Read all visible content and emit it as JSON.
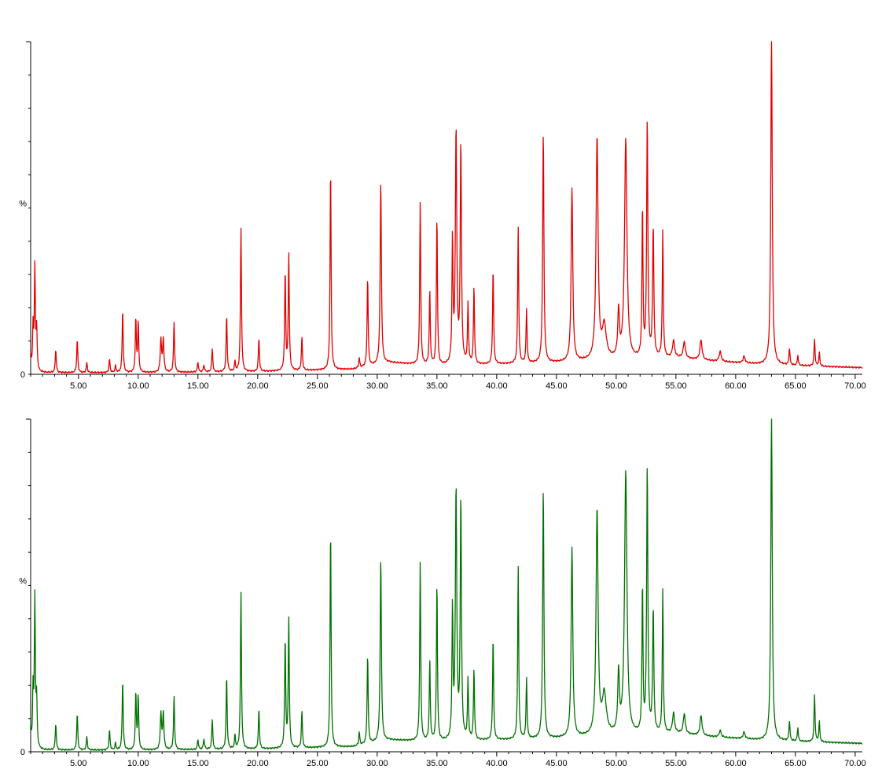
{
  "chart_data": [
    {
      "type": "line",
      "ylabel": "%",
      "xlim": [
        1,
        70.6
      ],
      "ylim": [
        0,
        100
      ],
      "x_ticks": [
        5,
        10,
        15,
        20,
        25,
        30,
        35,
        40,
        45,
        50,
        55,
        60,
        65,
        70
      ],
      "x_tick_labels": [
        "5.00",
        "10.00",
        "15.00",
        "20.00",
        "25.00",
        "30.00",
        "35.00",
        "40.00",
        "45.00",
        "50.00",
        "55.00",
        "60.00",
        "65.00",
        "70.00"
      ],
      "y_tick_labels": [
        "0"
      ],
      "color": "#e00000",
      "baseline": [
        [
          1,
          0.5
        ],
        [
          10,
          0.5
        ],
        [
          20,
          0.8
        ],
        [
          28,
          1.5
        ],
        [
          31,
          3.5
        ],
        [
          35,
          2.5
        ],
        [
          40,
          3
        ],
        [
          45,
          3.5
        ],
        [
          48,
          4
        ],
        [
          52,
          4.5
        ],
        [
          55,
          5
        ],
        [
          58,
          4
        ],
        [
          62,
          3
        ],
        [
          66,
          2.5
        ],
        [
          70.6,
          2
        ]
      ],
      "peaks": [
        [
          1.0,
          5,
          0.05
        ],
        [
          1.2,
          13,
          0.05
        ],
        [
          1.35,
          31,
          0.05
        ],
        [
          1.5,
          12,
          0.05
        ],
        [
          3.1,
          7,
          0.05
        ],
        [
          4.9,
          10,
          0.05
        ],
        [
          5.7,
          3,
          0.05
        ],
        [
          7.6,
          4,
          0.05
        ],
        [
          8.1,
          2,
          0.05
        ],
        [
          8.7,
          19,
          0.05
        ],
        [
          9.8,
          16,
          0.05
        ],
        [
          10.0,
          15,
          0.05
        ],
        [
          11.9,
          10,
          0.06
        ],
        [
          12.1,
          10,
          0.06
        ],
        [
          13.0,
          15,
          0.05
        ],
        [
          15.0,
          3,
          0.05
        ],
        [
          15.5,
          2,
          0.06
        ],
        [
          16.2,
          7,
          0.05
        ],
        [
          17.4,
          17,
          0.05
        ],
        [
          18.1,
          3,
          0.05
        ],
        [
          18.6,
          43,
          0.05
        ],
        [
          20.1,
          10,
          0.05
        ],
        [
          22.3,
          30,
          0.05
        ],
        [
          22.6,
          35,
          0.05
        ],
        [
          23.7,
          10,
          0.05
        ],
        [
          26.1,
          61,
          0.05
        ],
        [
          28.5,
          3,
          0.05
        ],
        [
          29.2,
          27,
          0.05
        ],
        [
          30.3,
          55,
          0.06
        ],
        [
          33.6,
          49,
          0.05
        ],
        [
          34.4,
          22,
          0.05
        ],
        [
          35.0,
          45,
          0.05
        ],
        [
          36.3,
          37,
          0.05
        ],
        [
          36.6,
          70,
          0.07
        ],
        [
          37.0,
          66,
          0.06
        ],
        [
          37.6,
          18,
          0.05
        ],
        [
          38.1,
          23,
          0.05
        ],
        [
          39.7,
          29,
          0.05
        ],
        [
          41.8,
          41,
          0.05
        ],
        [
          42.5,
          16,
          0.05
        ],
        [
          43.9,
          69,
          0.06
        ],
        [
          46.3,
          52,
          0.08
        ],
        [
          48.4,
          67,
          0.1
        ],
        [
          49.0,
          10,
          0.2
        ],
        [
          50.2,
          14,
          0.08
        ],
        [
          50.8,
          66,
          0.12
        ],
        [
          52.2,
          45,
          0.05
        ],
        [
          52.6,
          71,
          0.06
        ],
        [
          53.1,
          39,
          0.06
        ],
        [
          53.9,
          38,
          0.05
        ],
        [
          54.8,
          5,
          0.1
        ],
        [
          55.7,
          5,
          0.1
        ],
        [
          57.1,
          6,
          0.1
        ],
        [
          58.7,
          3,
          0.1
        ],
        [
          60.7,
          2,
          0.1
        ],
        [
          63.0,
          100,
          0.07
        ],
        [
          64.5,
          5,
          0.05
        ],
        [
          65.2,
          3,
          0.05
        ],
        [
          66.6,
          8,
          0.05
        ],
        [
          67.0,
          4,
          0.05
        ]
      ]
    },
    {
      "type": "line",
      "ylabel": "%",
      "xlim": [
        1,
        70.6
      ],
      "ylim": [
        0,
        100
      ],
      "x_ticks": [
        5,
        10,
        15,
        20,
        25,
        30,
        35,
        40,
        45,
        50,
        55,
        60,
        65,
        70
      ],
      "x_tick_labels": [
        "5.00",
        "10.00",
        "15.00",
        "20.00",
        "25.00",
        "30.00",
        "35.00",
        "40.00",
        "45.00",
        "50.00",
        "55.00",
        "60.00",
        "65.00",
        "70.00"
      ],
      "y_tick_labels": [
        "0"
      ],
      "color": "#007000",
      "baseline": [
        [
          1,
          0.5
        ],
        [
          10,
          0.5
        ],
        [
          20,
          0.8
        ],
        [
          28,
          1.5
        ],
        [
          31,
          3.5
        ],
        [
          35,
          3
        ],
        [
          40,
          3.5
        ],
        [
          45,
          4
        ],
        [
          48,
          4.5
        ],
        [
          52,
          5
        ],
        [
          55,
          5.5
        ],
        [
          58,
          4.5
        ],
        [
          62,
          3.5
        ],
        [
          66,
          3
        ],
        [
          70.6,
          2.5
        ]
      ],
      "peaks": [
        [
          1.0,
          6,
          0.05
        ],
        [
          1.2,
          17,
          0.05
        ],
        [
          1.35,
          45,
          0.05
        ],
        [
          1.5,
          14,
          0.05
        ],
        [
          3.1,
          8,
          0.05
        ],
        [
          4.9,
          11,
          0.05
        ],
        [
          5.7,
          4,
          0.05
        ],
        [
          7.6,
          6,
          0.05
        ],
        [
          8.1,
          2,
          0.05
        ],
        [
          8.7,
          21,
          0.05
        ],
        [
          9.8,
          17,
          0.05
        ],
        [
          10.0,
          16,
          0.05
        ],
        [
          11.9,
          11,
          0.06
        ],
        [
          12.1,
          11,
          0.06
        ],
        [
          13.0,
          16,
          0.05
        ],
        [
          15.0,
          3,
          0.05
        ],
        [
          15.5,
          3,
          0.06
        ],
        [
          16.2,
          9,
          0.05
        ],
        [
          17.4,
          22,
          0.05
        ],
        [
          18.1,
          4,
          0.05
        ],
        [
          18.6,
          47,
          0.05
        ],
        [
          20.1,
          12,
          0.05
        ],
        [
          22.3,
          33,
          0.05
        ],
        [
          22.6,
          39,
          0.05
        ],
        [
          23.7,
          11,
          0.05
        ],
        [
          26.1,
          66,
          0.05
        ],
        [
          28.5,
          4,
          0.05
        ],
        [
          29.2,
          27,
          0.05
        ],
        [
          30.3,
          55,
          0.06
        ],
        [
          33.6,
          54,
          0.05
        ],
        [
          34.4,
          24,
          0.05
        ],
        [
          35.0,
          48,
          0.05
        ],
        [
          36.3,
          39,
          0.05
        ],
        [
          36.6,
          75,
          0.07
        ],
        [
          37.0,
          72,
          0.06
        ],
        [
          37.6,
          18,
          0.05
        ],
        [
          38.1,
          21,
          0.05
        ],
        [
          39.7,
          31,
          0.05
        ],
        [
          41.8,
          52,
          0.05
        ],
        [
          42.5,
          18,
          0.05
        ],
        [
          43.9,
          75,
          0.06
        ],
        [
          46.3,
          57,
          0.08
        ],
        [
          48.4,
          68,
          0.1
        ],
        [
          49.0,
          12,
          0.2
        ],
        [
          50.2,
          18,
          0.08
        ],
        [
          50.8,
          79,
          0.12
        ],
        [
          52.2,
          44,
          0.05
        ],
        [
          52.6,
          80,
          0.06
        ],
        [
          53.1,
          37,
          0.06
        ],
        [
          53.9,
          43,
          0.05
        ],
        [
          54.8,
          6,
          0.1
        ],
        [
          55.7,
          6,
          0.1
        ],
        [
          57.1,
          6,
          0.1
        ],
        [
          58.7,
          2,
          0.1
        ],
        [
          60.7,
          2,
          0.1
        ],
        [
          63.0,
          100,
          0.07
        ],
        [
          64.5,
          6,
          0.05
        ],
        [
          65.2,
          4,
          0.05
        ],
        [
          66.6,
          14,
          0.05
        ],
        [
          67.0,
          6,
          0.05
        ]
      ]
    }
  ]
}
